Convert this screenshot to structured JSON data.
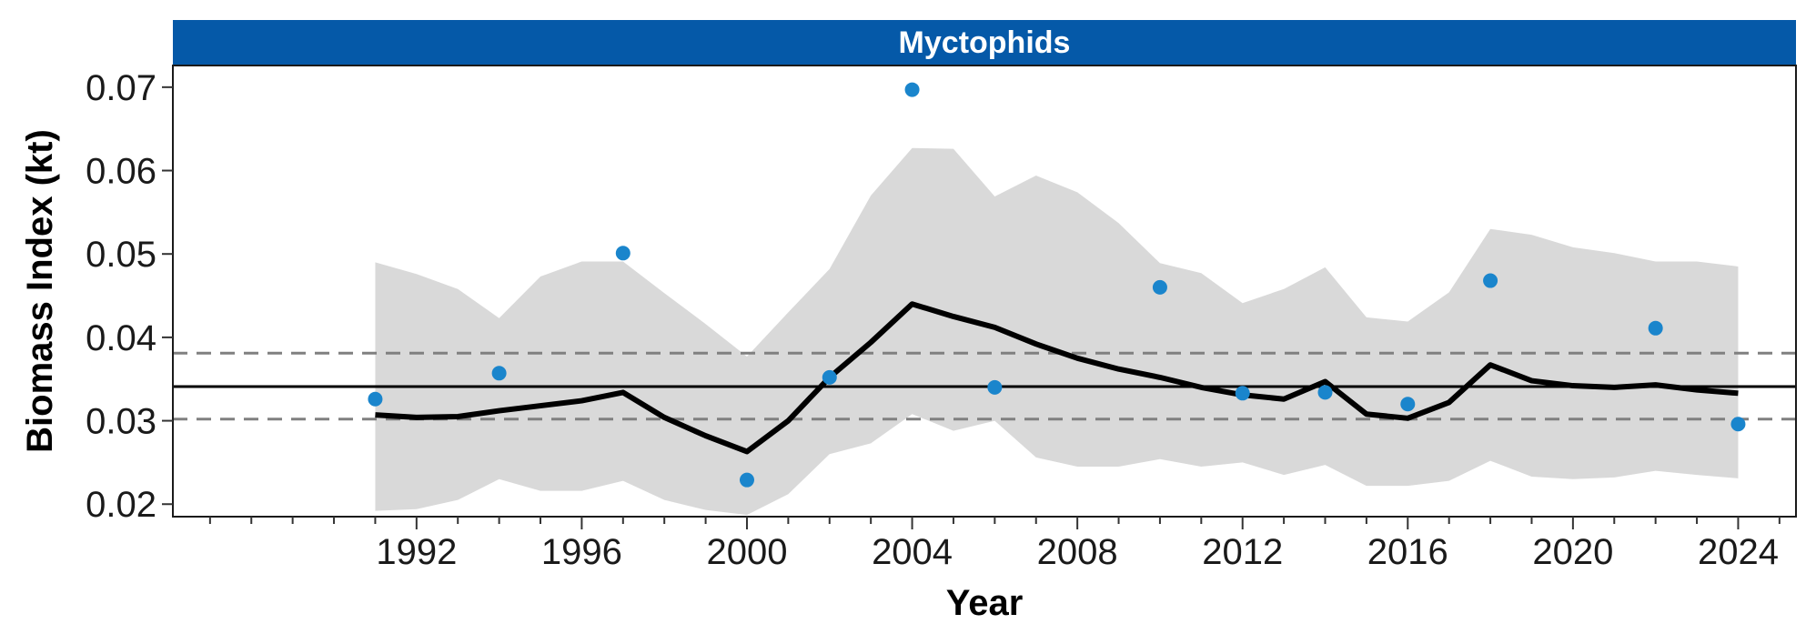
{
  "chart_data": {
    "type": "line",
    "panel_title": "Myctophids",
    "xlabel": "Year",
    "ylabel": "Biomass Index (kt)",
    "xlim": [
      1986.1,
      2025.4
    ],
    "ylim": [
      0.0185,
      0.0726
    ],
    "x_ticks": [
      1992,
      1996,
      2000,
      2004,
      2008,
      2012,
      2016,
      2020,
      2024
    ],
    "y_ticks": [
      0.02,
      0.03,
      0.04,
      0.05,
      0.06,
      0.07
    ],
    "y_tick_labels": [
      "0.02",
      "0.03",
      "0.04",
      "0.05",
      "0.06",
      "0.07"
    ],
    "grid": false,
    "colors": {
      "strip": "#0559A8",
      "points": "#1A85CC",
      "ribbon": "#D9D9D9",
      "trend": "#000000",
      "dashed": "#808080"
    },
    "series": [
      {
        "kind": "ribbon",
        "x": [
          1991,
          1992,
          1993,
          1994,
          1995,
          1996,
          1997,
          1998,
          1999,
          2000,
          2001,
          2002,
          2003,
          2004,
          2005,
          2006,
          2007,
          2008,
          2009,
          2010,
          2011,
          2012,
          2013,
          2014,
          2015,
          2016,
          2017,
          2018,
          2019,
          2020,
          2021,
          2022,
          2023,
          2024
        ],
        "lower": [
          0.0192,
          0.0194,
          0.0205,
          0.023,
          0.0216,
          0.0216,
          0.0228,
          0.0205,
          0.0193,
          0.0187,
          0.0212,
          0.026,
          0.0273,
          0.0308,
          0.0288,
          0.03,
          0.0256,
          0.0245,
          0.0245,
          0.0254,
          0.0245,
          0.025,
          0.0235,
          0.0247,
          0.0222,
          0.0222,
          0.0228,
          0.0252,
          0.0233,
          0.023,
          0.0232,
          0.024,
          0.0235,
          0.0231
        ],
        "upper": [
          0.049,
          0.0476,
          0.0458,
          0.0423,
          0.0473,
          0.0491,
          0.0491,
          0.0453,
          0.0416,
          0.0377,
          0.043,
          0.0482,
          0.057,
          0.0627,
          0.0626,
          0.0569,
          0.0594,
          0.0574,
          0.0537,
          0.0489,
          0.0477,
          0.0441,
          0.0458,
          0.0484,
          0.0424,
          0.0419,
          0.0454,
          0.053,
          0.0523,
          0.0508,
          0.0501,
          0.0491,
          0.0491,
          0.0485
        ]
      },
      {
        "kind": "line",
        "x": [
          1991,
          1992,
          1993,
          1994,
          1995,
          1996,
          1997,
          1998,
          1999,
          2000,
          2001,
          2002,
          2003,
          2004,
          2005,
          2006,
          2007,
          2008,
          2009,
          2010,
          2011,
          2012,
          2013,
          2014,
          2015,
          2016,
          2017,
          2018,
          2019,
          2020,
          2021,
          2022,
          2023,
          2024
        ],
        "y": [
          0.0307,
          0.0304,
          0.0305,
          0.0312,
          0.0318,
          0.0324,
          0.0334,
          0.0304,
          0.0282,
          0.0263,
          0.03,
          0.0352,
          0.0394,
          0.044,
          0.0425,
          0.0412,
          0.0392,
          0.0375,
          0.0362,
          0.0352,
          0.034,
          0.0331,
          0.0326,
          0.0347,
          0.0308,
          0.0303,
          0.0322,
          0.0367,
          0.0348,
          0.0342,
          0.034,
          0.0343,
          0.0337,
          0.0333
        ]
      },
      {
        "kind": "points",
        "x": [
          1991,
          1994,
          1997,
          2000,
          2002,
          2004,
          2006,
          2010,
          2012,
          2014,
          2016,
          2018,
          2022,
          2024
        ],
        "y": [
          0.0326,
          0.0357,
          0.0501,
          0.0229,
          0.0352,
          0.0697,
          0.034,
          0.046,
          0.0333,
          0.0334,
          0.032,
          0.0468,
          0.0411,
          0.0296
        ]
      },
      {
        "kind": "hline",
        "style": "solid",
        "y": 0.0341
      },
      {
        "kind": "hline",
        "style": "dashed",
        "y": 0.0381
      },
      {
        "kind": "hline",
        "style": "dashed",
        "y": 0.0302
      }
    ]
  }
}
